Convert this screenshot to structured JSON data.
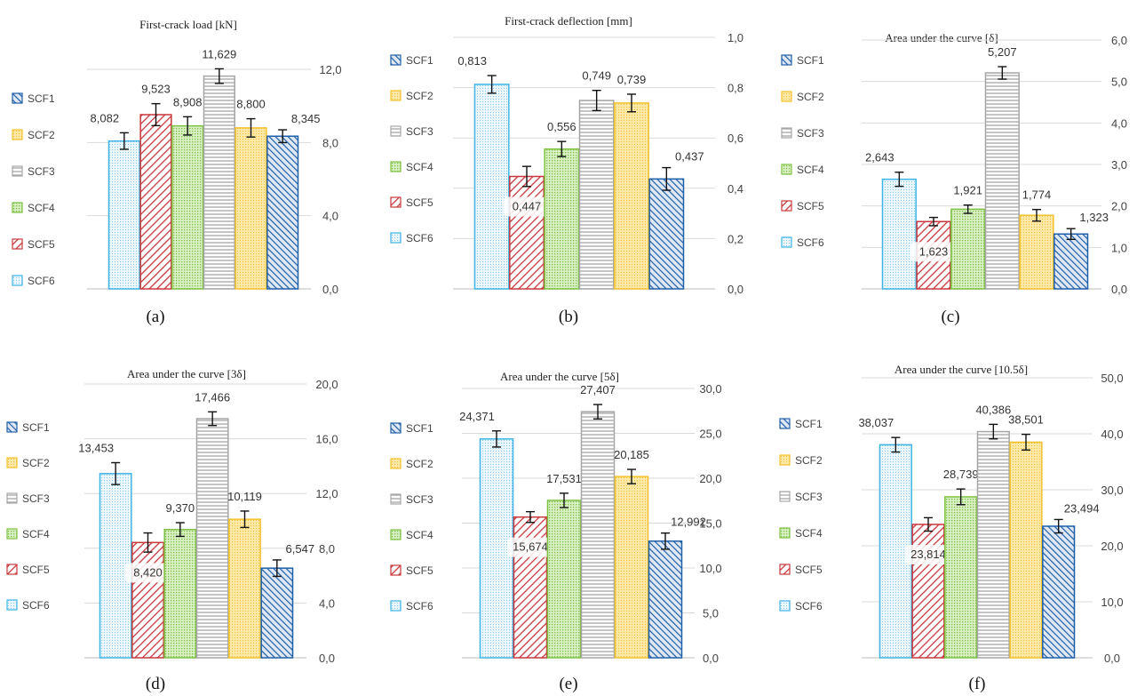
{
  "series_styles": {
    "SCF1": {
      "color": "#1f5fa8",
      "fill": "hatch-back"
    },
    "SCF2": {
      "color": "#f2c12e",
      "fill": "dots-yellow"
    },
    "SCF3": {
      "color": "#a6a6a6",
      "fill": "hlines"
    },
    "SCF4": {
      "color": "#7dc242",
      "fill": "dots-green"
    },
    "SCF5": {
      "color": "#c8383d",
      "fill": "hatch-fwd"
    },
    "SCF6": {
      "color": "#3fb4e5",
      "fill": "dots-blue"
    }
  },
  "legend": [
    "SCF1",
    "SCF2",
    "SCF3",
    "SCF4",
    "SCF5",
    "SCF6"
  ],
  "chart_data": [
    {
      "panel": "(a)",
      "type": "bar",
      "title": "First-crack load [kN]",
      "categories": [
        "SCF6",
        "SCF5",
        "SCF4",
        "SCF3",
        "SCF2",
        "SCF1"
      ],
      "values": [
        8.082,
        9.523,
        8.908,
        11.629,
        8.8,
        8.345
      ],
      "errors": [
        0.45,
        0.6,
        0.5,
        0.4,
        0.5,
        0.35
      ],
      "ylim": [
        0,
        12
      ],
      "yticks": [
        0,
        4,
        8,
        12
      ],
      "grid": true,
      "legend": "left"
    },
    {
      "panel": "(b)",
      "type": "bar",
      "title": "First-crack deflection [mm]",
      "categories": [
        "SCF6",
        "SCF5",
        "SCF4",
        "SCF3",
        "SCF2",
        "SCF1"
      ],
      "values": [
        0.813,
        0.447,
        0.556,
        0.749,
        0.739,
        0.437
      ],
      "errors": [
        0.035,
        0.04,
        0.03,
        0.04,
        0.035,
        0.045
      ],
      "ylim": [
        0,
        1
      ],
      "yticks": [
        0,
        0.2,
        0.4,
        0.6,
        0.8,
        1.0
      ],
      "grid": true,
      "legend": "left"
    },
    {
      "panel": "(c)",
      "type": "bar",
      "title": "Area under the curve [δ]",
      "categories": [
        "SCF6",
        "SCF5",
        "SCF4",
        "SCF3",
        "SCF2",
        "SCF1"
      ],
      "values": [
        2.643,
        1.623,
        1.921,
        5.207,
        1.774,
        1.323
      ],
      "errors": [
        0.17,
        0.1,
        0.1,
        0.15,
        0.14,
        0.13
      ],
      "ylim": [
        0,
        6
      ],
      "yticks": [
        0,
        1,
        2,
        3,
        4,
        5,
        6
      ],
      "grid": true,
      "legend": "left"
    },
    {
      "panel": "(d)",
      "type": "bar",
      "title": "Area under the curve [3δ]",
      "categories": [
        "SCF6",
        "SCF5",
        "SCF4",
        "SCF3",
        "SCF2",
        "SCF1"
      ],
      "values": [
        13.453,
        8.42,
        9.37,
        17.466,
        10.119,
        6.547
      ],
      "errors": [
        0.8,
        0.7,
        0.5,
        0.5,
        0.6,
        0.6
      ],
      "ylim": [
        0,
        20
      ],
      "yticks": [
        0,
        4,
        8,
        12,
        16,
        20
      ],
      "grid": true,
      "legend": "left"
    },
    {
      "panel": "(e)",
      "type": "bar",
      "title": "Area under the curve [5δ]",
      "categories": [
        "SCF6",
        "SCF5",
        "SCF4",
        "SCF3",
        "SCF2",
        "SCF1"
      ],
      "values": [
        24.371,
        15.674,
        17.531,
        27.407,
        20.185,
        12.992
      ],
      "errors": [
        0.9,
        0.6,
        0.8,
        0.8,
        0.8,
        0.9
      ],
      "ylim": [
        0,
        30
      ],
      "yticks": [
        0,
        5,
        10,
        15,
        20,
        25,
        30
      ],
      "grid": true,
      "legend": "left"
    },
    {
      "panel": "(f)",
      "type": "bar",
      "title": "Area under the curve [10.5δ]",
      "categories": [
        "SCF6",
        "SCF5",
        "SCF4",
        "SCF3",
        "SCF2",
        "SCF1"
      ],
      "values": [
        38.037,
        23.814,
        28.739,
        40.386,
        38.501,
        23.494
      ],
      "errors": [
        1.3,
        1.2,
        1.4,
        1.3,
        1.4,
        1.2
      ],
      "ylim": [
        0,
        50
      ],
      "yticks": [
        0,
        10,
        20,
        30,
        40,
        50
      ],
      "grid": true,
      "legend": "left"
    }
  ]
}
